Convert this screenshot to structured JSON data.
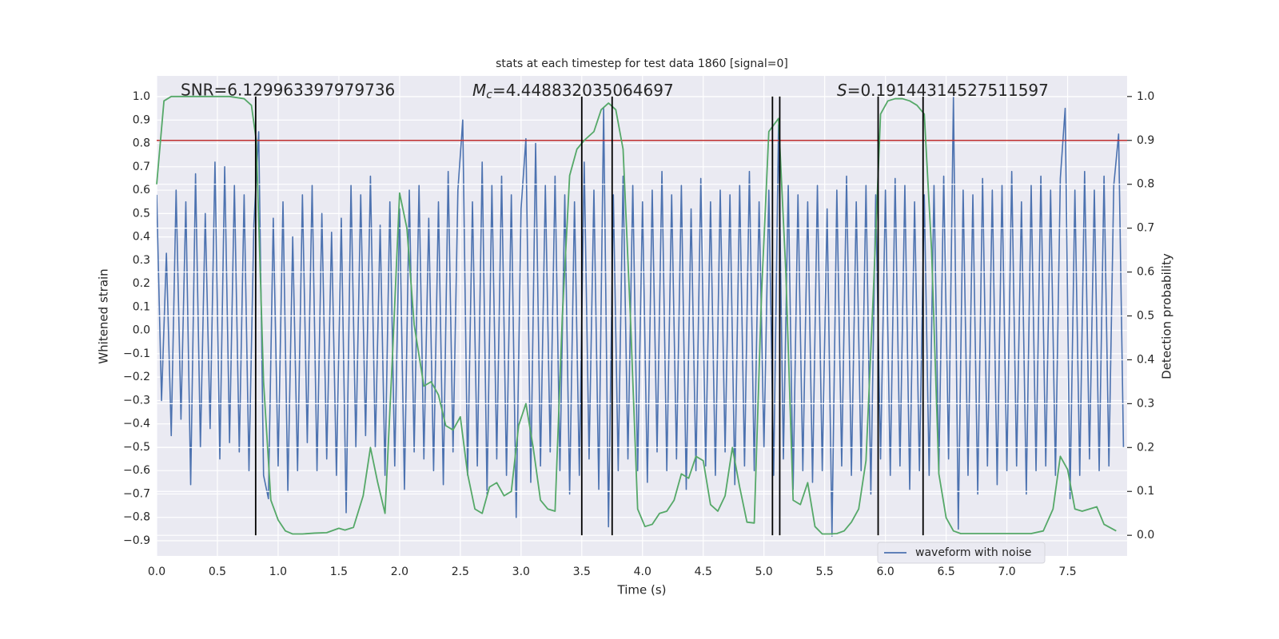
{
  "chart_data": {
    "type": "line",
    "title": "stats at each timestep for test data 1860 [signal=0]",
    "xlabel": "Time (s)",
    "ylabel": "Whitened strain",
    "y2label": "Detection probability",
    "xlim": [
      0,
      7.99
    ],
    "ylim": [
      -0.965,
      1.089
    ],
    "y2lim": [
      -0.047,
      1.047
    ],
    "xticks": [
      {
        "value": 0,
        "label": "0.0"
      },
      {
        "value": 0.5,
        "label": "0.5"
      },
      {
        "value": 1,
        "label": "1.0"
      },
      {
        "value": 1.5,
        "label": "1.5"
      },
      {
        "value": 2,
        "label": "2.0"
      },
      {
        "value": 2.5,
        "label": "2.5"
      },
      {
        "value": 3,
        "label": "3.0"
      },
      {
        "value": 3.5,
        "label": "3.5"
      },
      {
        "value": 4,
        "label": "4.0"
      },
      {
        "value": 4.5,
        "label": "4.5"
      },
      {
        "value": 5,
        "label": "5.0"
      },
      {
        "value": 5.5,
        "label": "5.5"
      },
      {
        "value": 6,
        "label": "6.0"
      },
      {
        "value": 6.5,
        "label": "6.5"
      },
      {
        "value": 7,
        "label": "7.0"
      },
      {
        "value": 7.5,
        "label": "7.5"
      }
    ],
    "yticks": [
      {
        "value": -0.9,
        "label": "−0.9"
      },
      {
        "value": -0.8,
        "label": "−0.8"
      },
      {
        "value": -0.7,
        "label": "−0.7"
      },
      {
        "value": -0.6,
        "label": "−0.6"
      },
      {
        "value": -0.5,
        "label": "−0.5"
      },
      {
        "value": -0.4,
        "label": "−0.4"
      },
      {
        "value": -0.3,
        "label": "−0.3"
      },
      {
        "value": -0.2,
        "label": "−0.2"
      },
      {
        "value": -0.1,
        "label": "−0.1"
      },
      {
        "value": 0,
        "label": "0.0"
      },
      0.1,
      0.2,
      0.3,
      0.4,
      0.5,
      0.6,
      0.7,
      0.8,
      0.9,
      {
        "value": 1,
        "label": "1.0"
      }
    ],
    "y2ticks": [
      {
        "value": 0,
        "label": "0.0"
      },
      0.1,
      0.2,
      0.3,
      0.4,
      0.5,
      0.6,
      0.7,
      0.8,
      0.9,
      {
        "value": 1,
        "label": "1.0"
      }
    ],
    "grid": true,
    "legend": "lower right",
    "series": [
      {
        "name": "waveform with noise",
        "color": "#4c72b0",
        "x": [
          0,
          0.04,
          0.08,
          0.12,
          0.16,
          0.2,
          0.24,
          0.28,
          0.32,
          0.36,
          0.4,
          0.44,
          0.48,
          0.52,
          0.56,
          0.6,
          0.64,
          0.68,
          0.72,
          0.76,
          0.8,
          0.84,
          0.88,
          0.92,
          0.96,
          1,
          1.04,
          1.08,
          1.12,
          1.16,
          1.2,
          1.24,
          1.28,
          1.32,
          1.36,
          1.4,
          1.44,
          1.48,
          1.52,
          1.56,
          1.6,
          1.64,
          1.68,
          1.72,
          1.76,
          1.8,
          1.84,
          1.88,
          1.92,
          1.96,
          2,
          2.04,
          2.08,
          2.12,
          2.16,
          2.2,
          2.24,
          2.28,
          2.32,
          2.36,
          2.4,
          2.44,
          2.48,
          2.52,
          2.56,
          2.6,
          2.64,
          2.68,
          2.72,
          2.76,
          2.8,
          2.84,
          2.88,
          2.92,
          2.96,
          3,
          3.04,
          3.08,
          3.12,
          3.16,
          3.2,
          3.24,
          3.28,
          3.32,
          3.36,
          3.4,
          3.44,
          3.48,
          3.52,
          3.56,
          3.6,
          3.64,
          3.68,
          3.72,
          3.76,
          3.8,
          3.84,
          3.88,
          3.92,
          3.96,
          4,
          4.04,
          4.08,
          4.12,
          4.16,
          4.2,
          4.24,
          4.28,
          4.32,
          4.36,
          4.4,
          4.44,
          4.48,
          4.52,
          4.56,
          4.6,
          4.64,
          4.68,
          4.72,
          4.76,
          4.8,
          4.84,
          4.88,
          4.92,
          4.96,
          5,
          5.04,
          5.08,
          5.12,
          5.16,
          5.2,
          5.24,
          5.28,
          5.32,
          5.36,
          5.4,
          5.44,
          5.48,
          5.52,
          5.56,
          5.6,
          5.64,
          5.68,
          5.72,
          5.76,
          5.8,
          5.84,
          5.88,
          5.92,
          5.96,
          6,
          6.04,
          6.08,
          6.12,
          6.16,
          6.2,
          6.24,
          6.28,
          6.32,
          6.36,
          6.4,
          6.44,
          6.48,
          6.52,
          6.56,
          6.6,
          6.64,
          6.68,
          6.72,
          6.76,
          6.8,
          6.84,
          6.88,
          6.92,
          6.96,
          7,
          7.04,
          7.08,
          7.12,
          7.16,
          7.2,
          7.24,
          7.28,
          7.32,
          7.36,
          7.4,
          7.44,
          7.48,
          7.52,
          7.56,
          7.6,
          7.64,
          7.68,
          7.72,
          7.76,
          7.8,
          7.84,
          7.88,
          7.92,
          7.96
        ],
        "values": [
          0.58,
          -0.3,
          0.33,
          -0.45,
          0.6,
          -0.38,
          0.55,
          -0.66,
          0.67,
          -0.5,
          0.5,
          -0.42,
          0.72,
          -0.55,
          0.7,
          -0.48,
          0.62,
          -0.52,
          0.58,
          -0.6,
          0.45,
          0.85,
          -0.62,
          -0.72,
          0.48,
          -0.58,
          0.55,
          -0.69,
          0.4,
          -0.6,
          0.58,
          -0.48,
          0.62,
          -0.6,
          0.5,
          -0.55,
          0.42,
          -0.62,
          0.48,
          -0.78,
          0.62,
          -0.5,
          0.58,
          -0.45,
          0.66,
          -0.5,
          0.45,
          -0.62,
          0.55,
          -0.58,
          0.52,
          -0.68,
          0.6,
          -0.52,
          0.62,
          -0.55,
          0.48,
          -0.6,
          0.55,
          -0.66,
          0.68,
          -0.52,
          0.6,
          0.9,
          -0.62,
          0.55,
          -0.58,
          0.72,
          -0.7,
          0.62,
          -0.55,
          0.66,
          -0.62,
          0.58,
          -0.8,
          0.52,
          0.82,
          -0.65,
          0.8,
          -0.58,
          0.62,
          -0.52,
          0.66,
          -0.6,
          0.58,
          -0.7,
          0.55,
          -0.62,
          0.72,
          -0.55,
          0.6,
          -0.68,
          0.95,
          -0.84,
          0.58,
          -0.6,
          0.66,
          -0.55,
          0.62,
          -0.6,
          0.55,
          -0.65,
          0.6,
          -0.52,
          0.68,
          -0.6,
          0.58,
          -0.55,
          0.62,
          -0.68,
          0.52,
          -0.6,
          0.65,
          -0.58,
          0.55,
          -0.62,
          0.6,
          -0.52,
          0.58,
          -0.66,
          0.62,
          -0.58,
          0.68,
          -0.6,
          0.55,
          -0.5,
          0.6,
          -0.62,
          0.88,
          -0.55,
          0.62,
          -0.68,
          0.58,
          -0.6,
          0.55,
          -0.65,
          0.62,
          -0.6,
          0.52,
          -0.88,
          0.6,
          -0.58,
          0.66,
          -0.62,
          0.55,
          -0.6,
          0.62,
          -0.7,
          0.58,
          -0.55,
          0.6,
          -0.62,
          0.65,
          -0.58,
          0.62,
          -0.68,
          0.55,
          -0.6,
          0.58,
          -0.62,
          0.62,
          -0.6,
          0.66,
          -0.55,
          1.0,
          -0.85,
          0.6,
          -0.62,
          0.58,
          -0.7,
          0.65,
          -0.58,
          0.6,
          -0.66,
          0.62,
          -0.6,
          0.68,
          -0.58,
          0.55,
          -0.7,
          0.62,
          -0.6,
          0.66,
          -0.58,
          0.6,
          -0.62,
          0.65,
          0.95,
          -0.72,
          0.6,
          -0.62,
          0.68,
          -0.55,
          0.6,
          -0.6,
          0.66,
          -0.58,
          0.62,
          0.84,
          -0.5
        ]
      },
      {
        "color": "#55a868",
        "axis": "y2",
        "x": [
          0,
          0.06,
          0.12,
          0.2,
          0.3,
          0.4,
          0.5,
          0.6,
          0.72,
          0.78,
          0.82,
          0.88,
          0.94,
          1.0,
          1.06,
          1.12,
          1.2,
          1.3,
          1.4,
          1.5,
          1.55,
          1.62,
          1.7,
          1.76,
          1.82,
          1.88,
          1.94,
          2.0,
          2.06,
          2.12,
          2.2,
          2.26,
          2.32,
          2.38,
          2.44,
          2.5,
          2.56,
          2.62,
          2.68,
          2.74,
          2.8,
          2.86,
          2.92,
          2.98,
          3.04,
          3.1,
          3.16,
          3.22,
          3.28,
          3.34,
          3.4,
          3.46,
          3.52,
          3.6,
          3.66,
          3.72,
          3.78,
          3.84,
          3.9,
          3.96,
          4.02,
          4.08,
          4.14,
          4.2,
          4.26,
          4.32,
          4.38,
          4.44,
          4.5,
          4.56,
          4.62,
          4.68,
          4.74,
          4.8,
          4.86,
          4.92,
          4.98,
          5.04,
          5.12,
          5.18,
          5.24,
          5.3,
          5.36,
          5.42,
          5.48,
          5.54,
          5.6,
          5.66,
          5.72,
          5.78,
          5.84,
          5.9,
          5.96,
          6.02,
          6.08,
          6.14,
          6.2,
          6.26,
          6.32,
          6.38,
          6.44,
          6.5,
          6.56,
          6.62,
          6.8,
          7.0,
          7.2,
          7.3,
          7.38,
          7.44,
          7.5,
          7.56,
          7.62,
          7.68,
          7.74,
          7.8,
          7.9
        ],
        "values": [
          0.8,
          0.99,
          1.0,
          1.0,
          1.0,
          1.0,
          1.0,
          1.0,
          0.995,
          0.98,
          0.9,
          0.35,
          0.08,
          0.035,
          0.01,
          0.003,
          0.003,
          0.005,
          0.006,
          0.016,
          0.012,
          0.018,
          0.09,
          0.2,
          0.12,
          0.05,
          0.4,
          0.78,
          0.7,
          0.48,
          0.34,
          0.35,
          0.32,
          0.25,
          0.24,
          0.27,
          0.14,
          0.06,
          0.05,
          0.11,
          0.12,
          0.09,
          0.1,
          0.25,
          0.3,
          0.2,
          0.08,
          0.06,
          0.055,
          0.5,
          0.82,
          0.88,
          0.9,
          0.92,
          0.97,
          0.985,
          0.97,
          0.88,
          0.5,
          0.06,
          0.02,
          0.025,
          0.05,
          0.055,
          0.08,
          0.14,
          0.13,
          0.18,
          0.17,
          0.07,
          0.055,
          0.09,
          0.2,
          0.11,
          0.03,
          0.028,
          0.55,
          0.92,
          0.95,
          0.6,
          0.08,
          0.07,
          0.12,
          0.02,
          0.003,
          0.003,
          0.004,
          0.01,
          0.03,
          0.06,
          0.17,
          0.55,
          0.96,
          0.99,
          0.995,
          0.995,
          0.99,
          0.98,
          0.96,
          0.65,
          0.14,
          0.04,
          0.01,
          0.004,
          0.004,
          0.004,
          0.004,
          0.01,
          0.06,
          0.18,
          0.15,
          0.06,
          0.055,
          0.06,
          0.065,
          0.025,
          0.01
        ]
      }
    ],
    "threshold": {
      "value": 0.9,
      "axis": "y2",
      "color": "#c03030"
    },
    "detections": {
      "x": [
        0.815,
        3.5,
        3.75,
        5.07,
        5.13,
        5.94,
        6.31
      ],
      "y2range": [
        0,
        1
      ],
      "color": "#000000"
    },
    "annotations": [
      {
        "text": "SNR=6.129963397979736"
      },
      {
        "symbol": "M",
        "subscript": "c",
        "text": "=4.448832035064697"
      },
      {
        "symbol": "S",
        "text": "=0.19144314527511597"
      }
    ]
  }
}
